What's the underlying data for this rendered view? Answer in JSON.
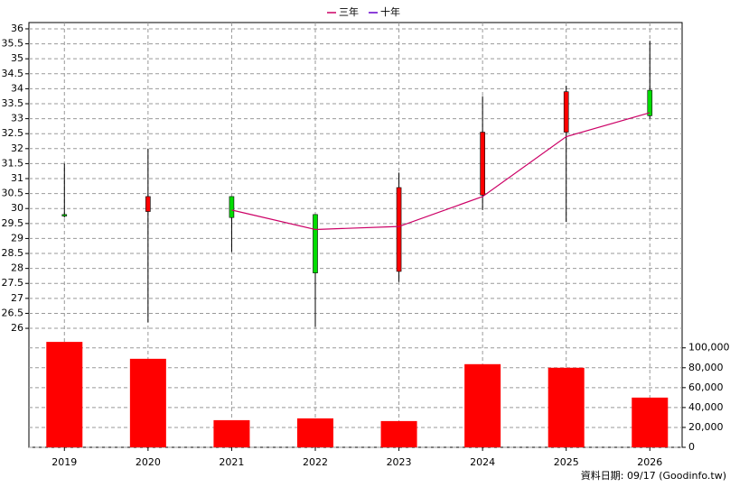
{
  "chart_data": {
    "type": "candlestick",
    "categories": [
      "2019",
      "2020",
      "2021",
      "2022",
      "2023",
      "2024",
      "2025",
      "2026"
    ],
    "ohlc": {
      "open": [
        29.8,
        29.9,
        30.4,
        29.8,
        27.9,
        30.45,
        32.55,
        33.95
      ],
      "high": [
        31.5,
        32.0,
        30.4,
        29.8,
        31.2,
        33.75,
        34.1,
        35.6
      ],
      "low": [
        29.7,
        26.2,
        28.55,
        26.05,
        27.55,
        29.95,
        29.55,
        33.0
      ],
      "close": [
        29.75,
        30.4,
        29.7,
        27.85,
        30.7,
        32.55,
        33.9,
        33.1
      ]
    },
    "up_color": "#ff0000",
    "down_color": "#00dd00",
    "series": [
      {
        "name": "三年",
        "color": "#cc0066",
        "values": [
          null,
          null,
          29.95,
          29.3,
          29.4,
          30.4,
          32.4,
          33.2
        ]
      },
      {
        "name": "十年",
        "color": "#6600cc",
        "values": [
          null,
          null,
          null,
          null,
          null,
          null,
          null,
          null
        ]
      }
    ],
    "volume": {
      "color": "#ff0000",
      "axis": "y2",
      "values": [
        106000,
        89000,
        27300,
        29100,
        26400,
        83600,
        80000,
        50000
      ]
    },
    "ylim": [
      25.52,
      36.21
    ],
    "yticks": [
      26,
      26.5,
      27,
      27.5,
      28,
      28.5,
      29,
      29.5,
      30,
      30.5,
      31,
      31.5,
      32,
      32.5,
      33,
      33.5,
      34,
      34.5,
      35,
      35.5,
      36
    ],
    "y2lim": [
      0,
      107000
    ],
    "y2ticks": [
      0,
      {
        "value": 20000,
        "label": "20,000"
      },
      {
        "value": 40000,
        "label": "40,000"
      },
      {
        "value": 60000,
        "label": "60,000"
      },
      {
        "value": 80000,
        "label": "80,000"
      },
      {
        "value": 100000,
        "label": "100,000"
      }
    ],
    "grid": true,
    "footnote": "資料日期: 09/17  (Goodinfo.tw)"
  }
}
